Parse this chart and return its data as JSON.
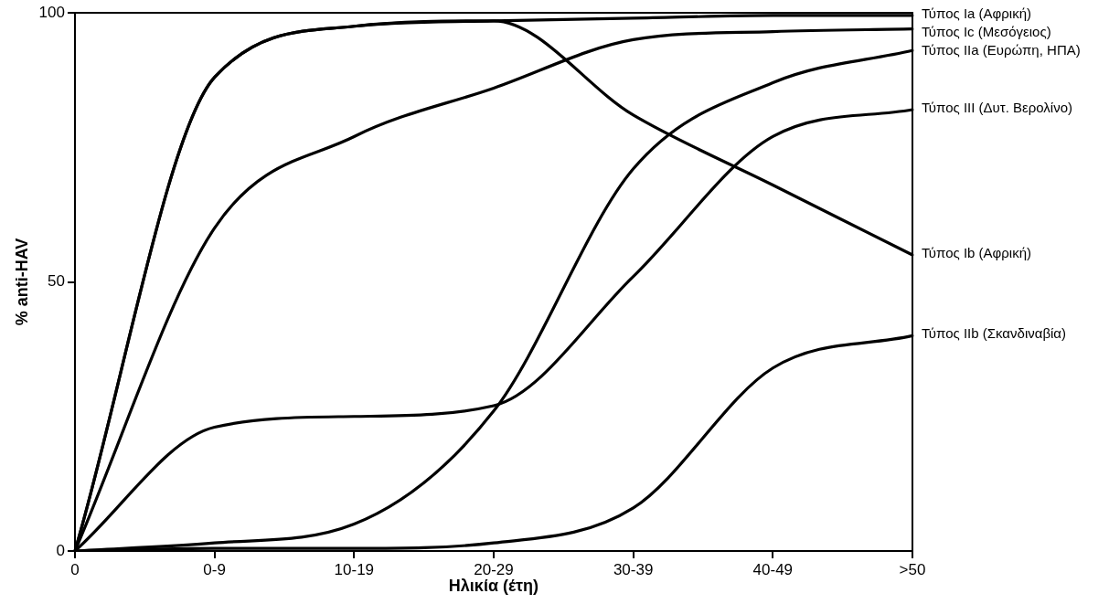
{
  "chart_data": {
    "type": "line",
    "xlabel": "Ηλικία (έτη)",
    "ylabel": "% anti-HAV",
    "categories": [
      "0",
      "0-9",
      "10-19",
      "20-29",
      "30-39",
      "40-49",
      ">50"
    ],
    "ylim": [
      0,
      100
    ],
    "yticks": [
      0,
      50,
      100
    ],
    "grid": false,
    "legend": false,
    "marker": "none",
    "line_style": "solid",
    "series": [
      {
        "name": "Τύπος Ia (Αφρική)",
        "color": "#000000",
        "values": [
          0,
          88,
          97.5,
          98.5,
          99,
          99.5,
          99.5
        ]
      },
      {
        "name": "Τύπος Ic (Μεσόγειος)",
        "color": "#000000",
        "values": [
          0,
          60,
          77,
          86,
          95,
          96.5,
          97
        ]
      },
      {
        "name": "Τύπος IIa (Ευρώπη, ΗΠΑ)",
        "color": "#000000",
        "values": [
          0,
          1.5,
          5,
          26,
          71,
          87,
          93
        ]
      },
      {
        "name": "Τύπος III (Δυτ. Βερολίνο)",
        "color": "#000000",
        "values": [
          0,
          23,
          25,
          27,
          51,
          77,
          82
        ]
      },
      {
        "name": "Τύπος Ib (Αφρική)",
        "color": "#000000",
        "values": [
          0,
          88,
          97.5,
          98.5,
          81,
          68,
          55
        ]
      },
      {
        "name": "Τύπος IIb (Σκανδιναβία)",
        "color": "#000000",
        "values": [
          0,
          0.5,
          0.5,
          1.5,
          8,
          34,
          40
        ]
      }
    ]
  }
}
